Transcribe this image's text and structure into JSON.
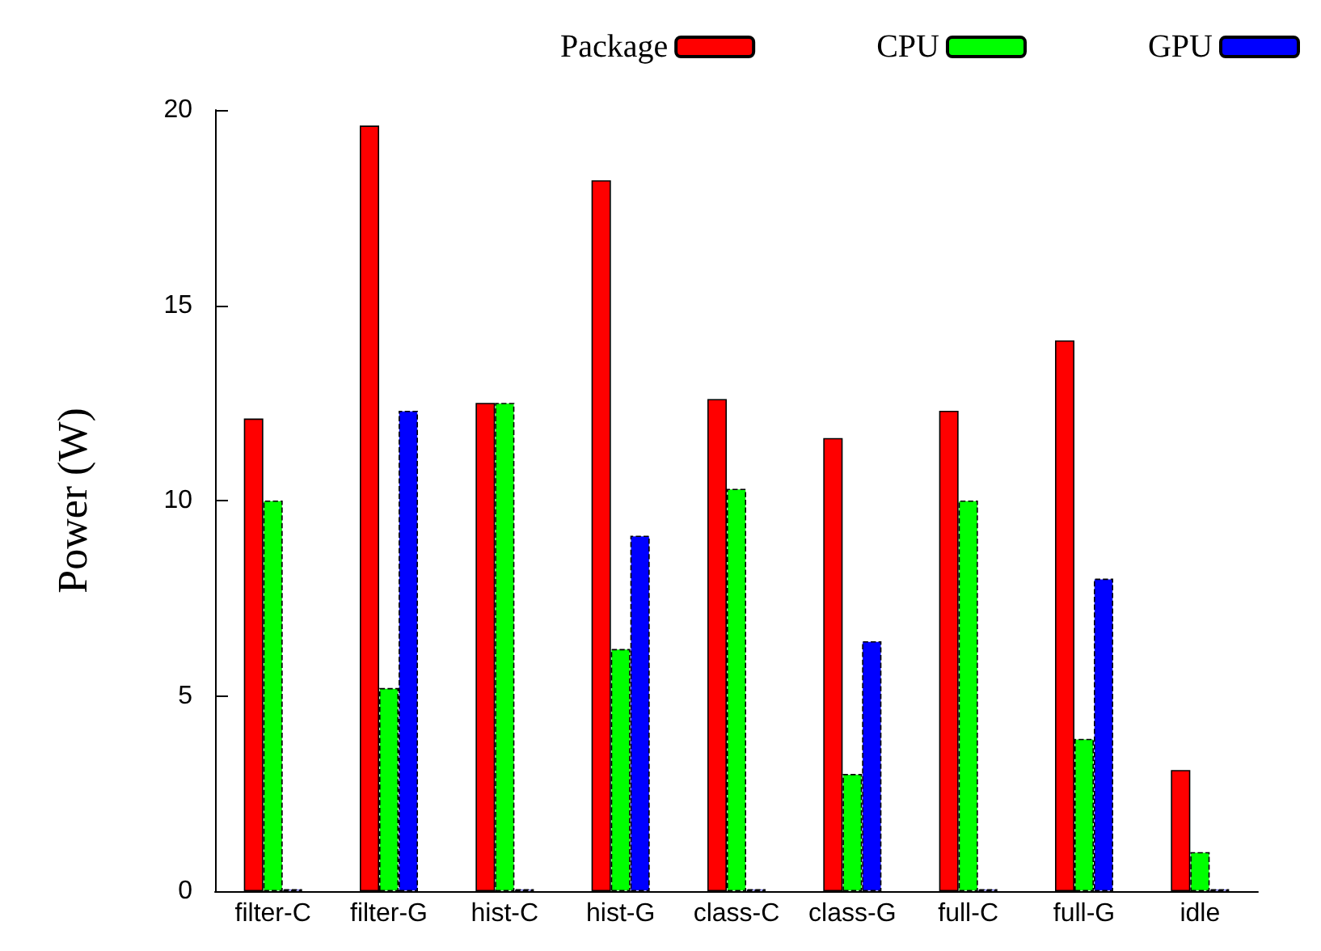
{
  "chart_data": {
    "type": "bar",
    "ylabel": "Power (W)",
    "categories": [
      "filter-C",
      "filter-G",
      "hist-C",
      "hist-G",
      "class-C",
      "class-G",
      "full-C",
      "full-G",
      "idle"
    ],
    "series": [
      {
        "name": "Package",
        "color": "#ff0000",
        "values": [
          12.1,
          19.6,
          12.5,
          18.2,
          12.6,
          11.6,
          12.3,
          14.1,
          3.1
        ]
      },
      {
        "name": "CPU",
        "color": "#00ff00",
        "values": [
          10.0,
          5.2,
          12.5,
          6.2,
          10.3,
          3.0,
          10.0,
          3.9,
          1.0
        ]
      },
      {
        "name": "GPU",
        "color": "#0000ff",
        "values": [
          0.05,
          12.3,
          0.05,
          9.1,
          0.05,
          6.4,
          0.05,
          8.0,
          0.05
        ]
      }
    ],
    "ylim": [
      0,
      20
    ],
    "yticks": [
      0,
      5,
      10,
      15,
      20
    ],
    "grid": false,
    "legend": "top right"
  }
}
